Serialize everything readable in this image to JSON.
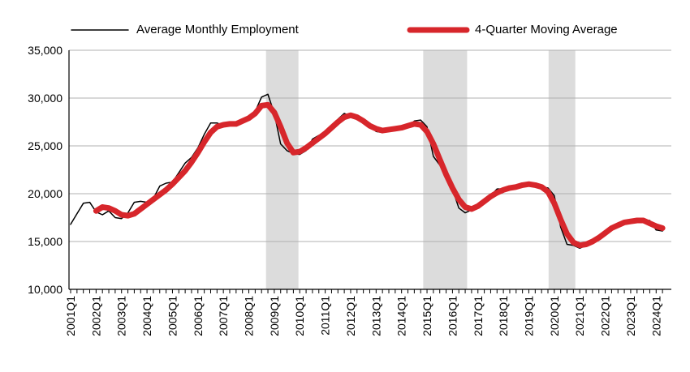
{
  "chart_data": {
    "type": "line",
    "categories": [
      "2001Q1",
      null,
      null,
      null,
      "2002Q1",
      null,
      null,
      null,
      "2003Q1",
      null,
      null,
      null,
      "2004Q1",
      null,
      null,
      null,
      "2005Q1",
      null,
      null,
      null,
      "2006Q1",
      null,
      null,
      null,
      "2007Q1",
      null,
      null,
      null,
      "2008Q1",
      null,
      null,
      null,
      "2009Q1",
      null,
      null,
      null,
      "2010Q1",
      null,
      null,
      null,
      "2011Q1",
      null,
      null,
      null,
      "2012Q1",
      null,
      null,
      null,
      "2013Q1",
      null,
      null,
      null,
      "2014Q1",
      null,
      null,
      null,
      "2015Q1",
      null,
      null,
      null,
      "2016Q1",
      null,
      null,
      null,
      "2017Q1",
      null,
      null,
      null,
      "2018Q1",
      null,
      null,
      null,
      "2019Q1",
      null,
      null,
      null,
      "2020Q1",
      null,
      null,
      null,
      "2021Q1",
      null,
      null,
      null,
      "2022Q1",
      null,
      null,
      null,
      "2023Q1",
      null,
      null,
      null,
      "2024Q1",
      null
    ],
    "series": [
      {
        "name": "Average Monthly Employment",
        "color": "#000000",
        "width": 1.5,
        "values": [
          16800,
          17900,
          19000,
          19100,
          18100,
          17800,
          18200,
          17500,
          17400,
          18000,
          19100,
          19200,
          19100,
          19500,
          20800,
          21100,
          21200,
          22200,
          23200,
          23800,
          24800,
          26200,
          27400,
          27400,
          27100,
          27300,
          27500,
          27600,
          28000,
          28600,
          30100,
          30400,
          28400,
          25200,
          24500,
          24200,
          24100,
          24500,
          25700,
          26100,
          26100,
          26600,
          27800,
          28400,
          28100,
          27800,
          27500,
          27400,
          26500,
          26400,
          26800,
          26900,
          26800,
          27000,
          27600,
          27700,
          27000,
          23900,
          23000,
          22000,
          20500,
          18500,
          18000,
          18300,
          18500,
          19200,
          19800,
          20500,
          20500,
          20400,
          20700,
          21000,
          20900,
          20800,
          20700,
          20600,
          19800,
          16500,
          14700,
          14600,
          14300,
          14600,
          15000,
          15500,
          15800,
          16300,
          16700,
          16900,
          17000,
          17100,
          17200,
          17200,
          16200,
          16100
        ]
      },
      {
        "name": "4-Quarter Moving Average",
        "color": "#d7262b",
        "width": 7,
        "values": [
          null,
          null,
          null,
          null,
          18200,
          18600,
          18500,
          18200,
          17800,
          17700,
          17900,
          18400,
          18900,
          19400,
          19900,
          20400,
          21000,
          21700,
          22400,
          23300,
          24300,
          25400,
          26400,
          27000,
          27200,
          27300,
          27300,
          27600,
          27900,
          28400,
          29200,
          29300,
          28500,
          27000,
          25300,
          24300,
          24400,
          24800,
          25300,
          25800,
          26300,
          26900,
          27500,
          28000,
          28200,
          28000,
          27600,
          27100,
          26800,
          26600,
          26700,
          26800,
          26900,
          27100,
          27300,
          27200,
          26500,
          25200,
          23600,
          22000,
          20600,
          19400,
          18600,
          18400,
          18700,
          19200,
          19700,
          20100,
          20400,
          20600,
          20700,
          20900,
          21000,
          20900,
          20700,
          20200,
          19000,
          17300,
          15800,
          14900,
          14600,
          14700,
          15000,
          15400,
          15900,
          16400,
          16700,
          17000,
          17100,
          17200,
          17200,
          16900,
          16600,
          16400
        ]
      }
    ],
    "shaded_periods": [
      [
        30.7,
        35.8
      ],
      [
        55.4,
        62.3
      ],
      [
        75.1,
        79.3
      ]
    ],
    "shade_color": "#dcdcdc",
    "ylim": [
      10000,
      35000
    ],
    "yticks": [
      {
        "value": 10000,
        "label": "10,000"
      },
      {
        "value": 15000,
        "label": "15,000"
      },
      {
        "value": 20000,
        "label": "20,000"
      },
      {
        "value": 25000,
        "label": "25,000"
      },
      {
        "value": 30000,
        "label": "30,000"
      },
      {
        "value": 35000,
        "label": "35,000"
      }
    ],
    "grid": true,
    "legend": "top"
  }
}
